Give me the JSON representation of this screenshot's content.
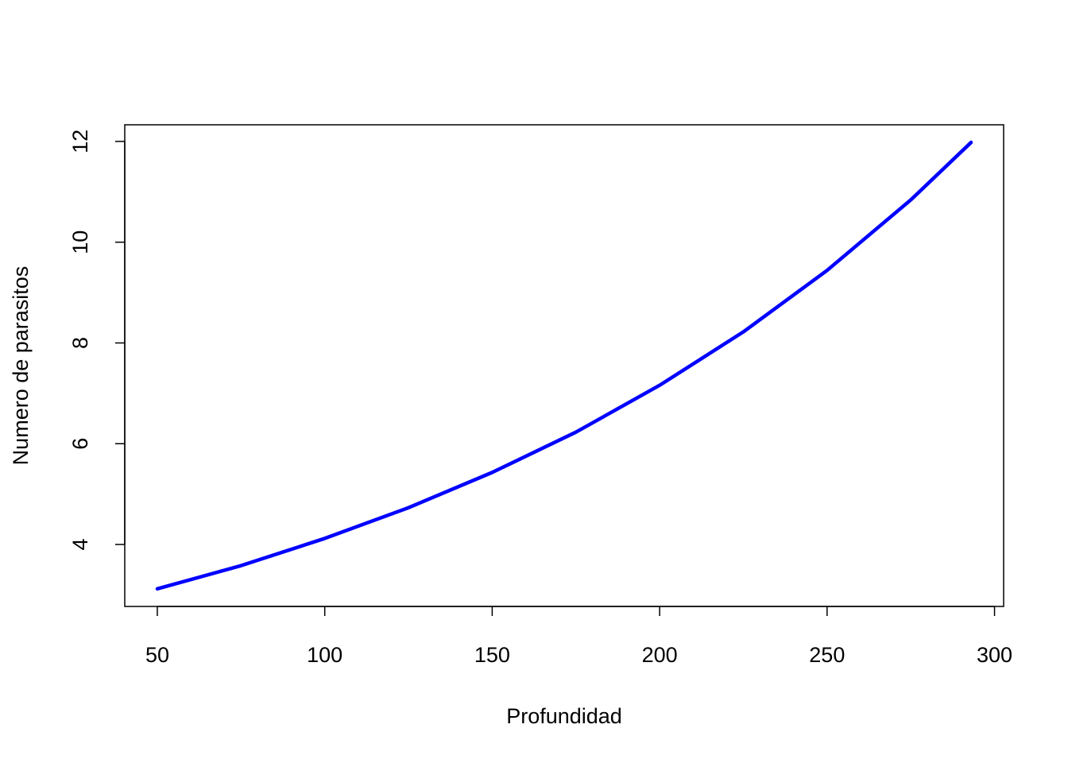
{
  "chart_data": {
    "type": "line",
    "x_label": "Profundidad",
    "y_label": "Numero de parasitos",
    "x": [
      50,
      75,
      100,
      125,
      150,
      175,
      200,
      225,
      250,
      275,
      293
    ],
    "series": [
      {
        "color": "#0000ff",
        "values": [
          3.12,
          3.58,
          4.12,
          4.73,
          5.43,
          6.23,
          7.16,
          8.22,
          9.44,
          10.84,
          11.98
        ]
      }
    ],
    "xlim": [
      40.28,
      302.72
    ],
    "ylim": [
      2.77,
      12.33
    ],
    "xticks": [
      50,
      100,
      150,
      200,
      250,
      300
    ],
    "yticks": [
      4,
      6,
      8,
      10,
      12
    ]
  }
}
